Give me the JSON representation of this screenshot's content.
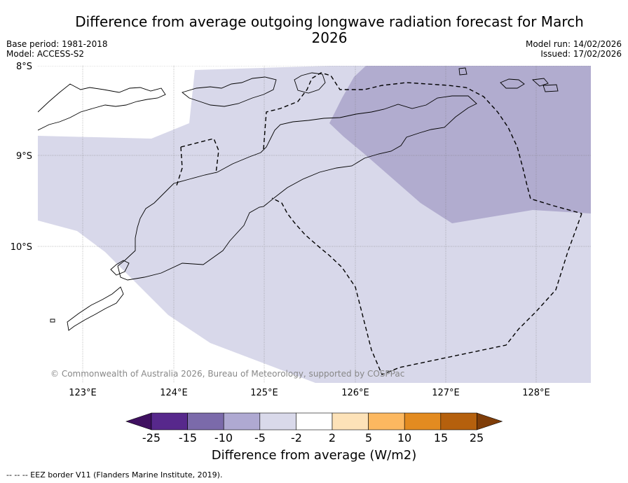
{
  "title": "Difference from average outgoing longwave radiation forecast for March 2026",
  "meta": {
    "base_period": "Base period: 1981-2018",
    "model": "Model: ACCESS-S2",
    "model_run": "Model run: 14/02/2026",
    "issued": "Issued: 17/02/2026"
  },
  "map": {
    "lat_labels": [
      "8°S",
      "9°S",
      "10°S"
    ],
    "lon_labels": [
      "123°E",
      "124°E",
      "125°E",
      "126°E",
      "127°E",
      "128°E"
    ],
    "copyright": "© Commonwealth of Australia 2026, Bureau of Meteorology, supported by COSPPac"
  },
  "colorbar": {
    "title": "Difference from average (W/m2)",
    "ticks": [
      "-25",
      "-15",
      "-10",
      "-5",
      "-2",
      "2",
      "5",
      "10",
      "15",
      "25"
    ],
    "colors": [
      "#3f1060",
      "#57288c",
      "#7b6aaa",
      "#afa9d2",
      "#d9d9ea",
      "#ffffff",
      "#fde2b8",
      "#fcb860",
      "#e38b20",
      "#b5600d",
      "#7f3d08"
    ]
  },
  "footnote": "--  --  -- EEZ border V11 (Flanders Marine Institute, 2019)."
}
